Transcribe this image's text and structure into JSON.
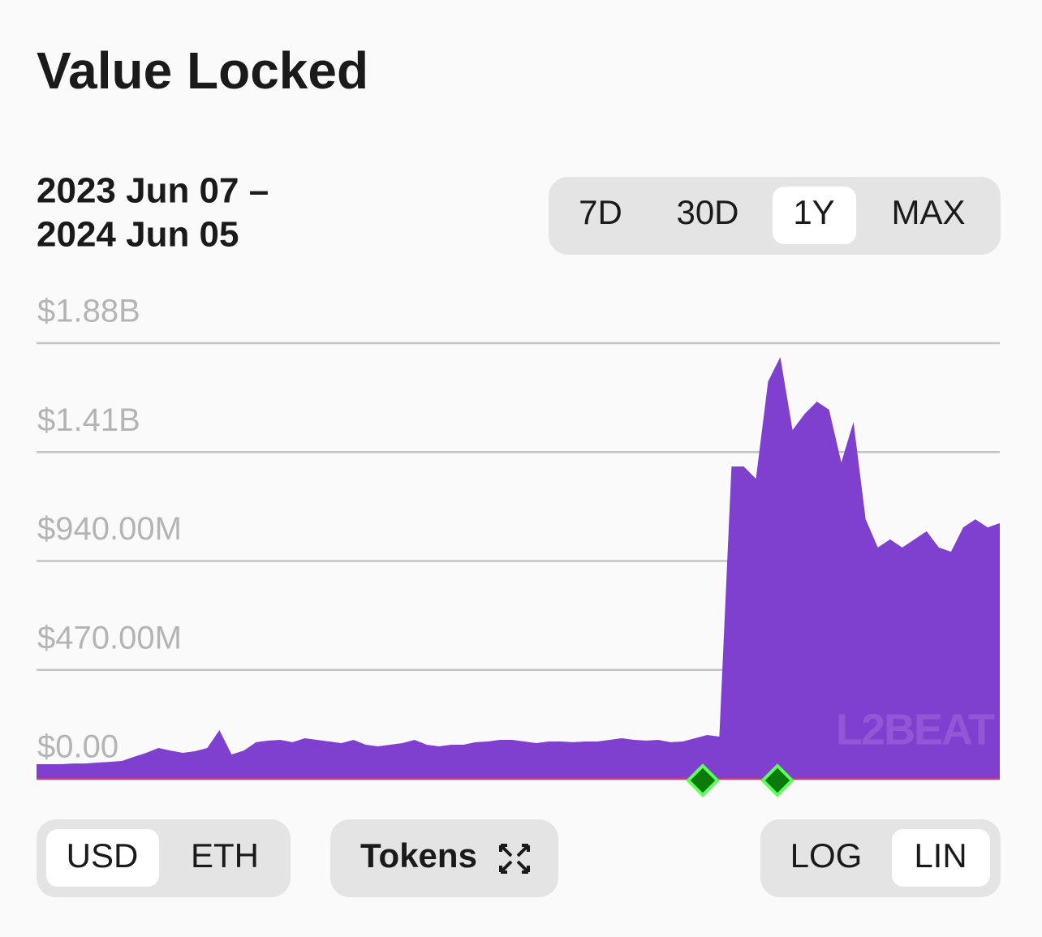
{
  "header": {
    "title": "Value Locked",
    "date_range": [
      "2023 Jun 07 –",
      "2024 Jun 05"
    ]
  },
  "timeframes": [
    "7D",
    "30D",
    "1Y",
    "MAX"
  ],
  "currencies": [
    "USD",
    "ETH"
  ],
  "tokens_button": "Tokens",
  "scales": [
    "LOG",
    "LIN"
  ],
  "watermark": "L2BEAT",
  "chart_data": {
    "type": "area",
    "color": "#7f40d0",
    "grid": true,
    "ylim": [
      0,
      1880000000
    ],
    "yticks": [
      {
        "value": 0,
        "label": "$0.00"
      },
      {
        "value": 470000000,
        "label": "$470.00M"
      },
      {
        "value": 940000000,
        "label": "$940.00M"
      },
      {
        "value": 1410000000,
        "label": "$1.41B"
      },
      {
        "value": 1880000000,
        "label": "$1.88B"
      }
    ],
    "values": [
      63000000,
      63000000,
      63000000,
      66000000,
      66000000,
      70000000,
      73000000,
      77000000,
      95000000,
      112000000,
      133000000,
      122000000,
      112000000,
      119000000,
      133000000,
      210000000,
      105000000,
      122000000,
      158000000,
      165000000,
      168000000,
      158000000,
      175000000,
      168000000,
      161000000,
      154000000,
      168000000,
      147000000,
      140000000,
      147000000,
      154000000,
      168000000,
      147000000,
      140000000,
      147000000,
      147000000,
      158000000,
      161000000,
      168000000,
      168000000,
      161000000,
      154000000,
      161000000,
      161000000,
      158000000,
      161000000,
      161000000,
      168000000,
      175000000,
      168000000,
      165000000,
      168000000,
      158000000,
      161000000,
      175000000,
      189000000,
      182000000,
      1348000000,
      1348000000,
      1295000000,
      1715000000,
      1820000000,
      1505000000,
      1575000000,
      1628000000,
      1593000000,
      1365000000,
      1540000000,
      1120000000,
      998000000,
      1033000000,
      998000000,
      1033000000,
      1068000000,
      998000000,
      980000000,
      1085000000,
      1120000000,
      1085000000,
      1103000000
    ]
  }
}
